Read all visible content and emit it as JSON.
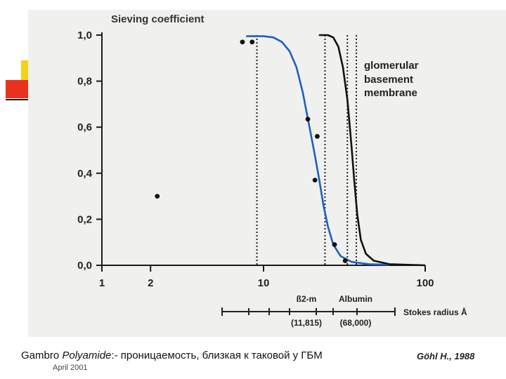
{
  "chart_data": {
    "type": "line",
    "title": "Sieving coefficient",
    "xscale": "log",
    "xlim": [
      1,
      100
    ],
    "ylim": [
      0,
      1
    ],
    "y_ticks": [
      "1,0",
      "0,8",
      "0,6",
      "0,4",
      "0,2",
      "0,0"
    ],
    "x_ticks": [
      {
        "v": 1,
        "label": "1"
      },
      {
        "v": 2,
        "label": "2"
      },
      {
        "v": 10,
        "label": "10"
      },
      {
        "v": 100,
        "label": "100"
      }
    ],
    "series": [
      {
        "name": "Polyamide",
        "color": "#1f5fbf",
        "points": [
          [
            7.8,
            0.995
          ],
          [
            10,
            0.995
          ],
          [
            11.5,
            0.99
          ],
          [
            13,
            0.97
          ],
          [
            14.5,
            0.93
          ],
          [
            16,
            0.86
          ],
          [
            17.5,
            0.75
          ],
          [
            19,
            0.62
          ],
          [
            20.5,
            0.5
          ],
          [
            22,
            0.38
          ],
          [
            23.5,
            0.26
          ],
          [
            25,
            0.17
          ],
          [
            27,
            0.09
          ],
          [
            30,
            0.04
          ],
          [
            35,
            0.015
          ],
          [
            45,
            0.005
          ],
          [
            60,
            0.002
          ]
        ]
      },
      {
        "name": "glomerular basement membrane",
        "color": "#111111",
        "points": [
          [
            22,
            1.0
          ],
          [
            25,
            1.0
          ],
          [
            27,
            0.99
          ],
          [
            29,
            0.95
          ],
          [
            31,
            0.86
          ],
          [
            33,
            0.72
          ],
          [
            35,
            0.52
          ],
          [
            36.5,
            0.36
          ],
          [
            38,
            0.22
          ],
          [
            40,
            0.11
          ],
          [
            43,
            0.05
          ],
          [
            48,
            0.02
          ],
          [
            60,
            0.005
          ],
          [
            100,
            0.0
          ]
        ]
      }
    ],
    "measured_points": [
      [
        7.4,
        0.97
      ],
      [
        8.5,
        0.97
      ],
      [
        18.8,
        0.635
      ],
      [
        21.5,
        0.56
      ],
      [
        20.8,
        0.37
      ],
      [
        27.5,
        0.09
      ],
      [
        32,
        0.02
      ],
      [
        2.2,
        0.3
      ]
    ],
    "reference_lines": [
      {
        "x": 9.1,
        "y_top": 1.0
      },
      {
        "x": 24,
        "y_top": 1.0
      },
      {
        "x": 33,
        "y_top": 1.0
      },
      {
        "x": 37.5,
        "y_top": 1.0
      }
    ],
    "annotation": [
      "glomerular",
      "basement",
      "membrane"
    ],
    "stokes_axis": {
      "label": "Stokes radius Å",
      "markers": [
        {
          "name": "ß2-m",
          "mw": "(11,815)"
        },
        {
          "name": "Albumin",
          "mw": "(68,000)"
        }
      ]
    }
  },
  "caption": {
    "prefix": "Gambro ",
    "italic": "Polyamide",
    "rest": ":- проницаемость, близкая к таковой у ГБМ",
    "author": "Göhl H., 1988"
  },
  "date": "April 2001",
  "colors": {
    "panel_bg": "#f0f0ee",
    "blue_curve": "#1f5fbf",
    "black_curve": "#111111",
    "deco_yellow": "#f3d21a",
    "deco_red": "#e8321e"
  }
}
